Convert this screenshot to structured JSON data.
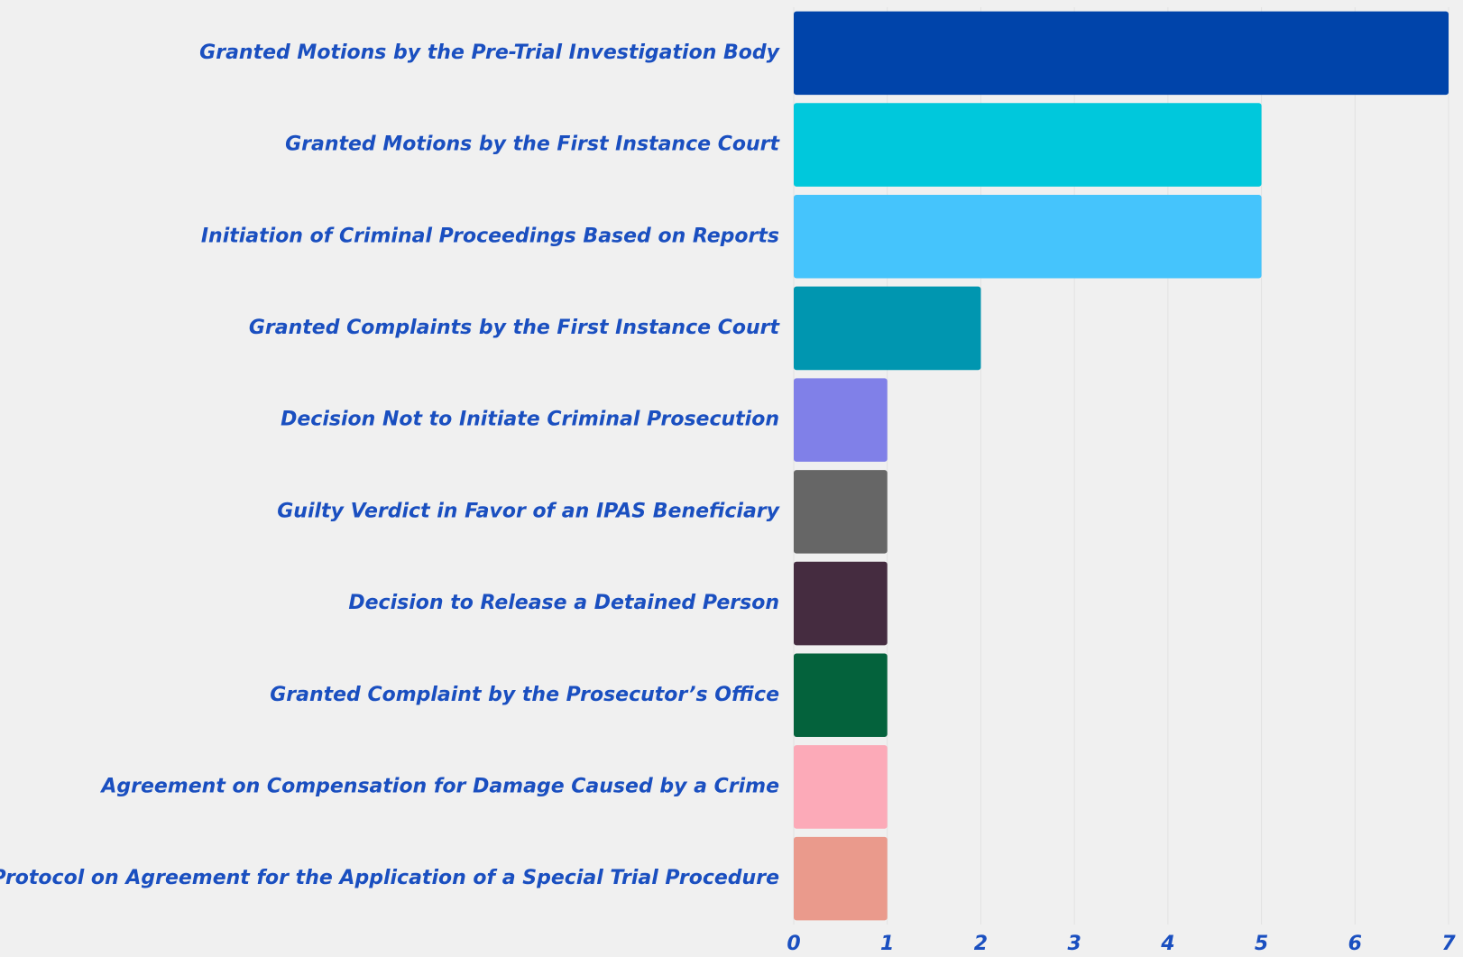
{
  "chart_data": {
    "type": "bar",
    "orientation": "horizontal",
    "categories": [
      "Granted Motions by the Pre-Trial Investigation Body",
      "Granted Motions by the First Instance Court",
      "Initiation of Criminal Proceedings Based on Reports",
      "Granted Complaints by the First Instance Court",
      "Decision Not to Initiate Criminal Prosecution",
      "Guilty Verdict in Favor of an IPAS Beneficiary",
      "Decision to Release a Detained Person",
      "Granted Complaint by the Prosecutor’s Office",
      "Agreement on Compensation for Damage Caused by a Crime",
      "Protocol on Agreement for the Application of a Special Trial Procedure"
    ],
    "values": [
      7,
      5,
      5,
      2,
      1,
      1,
      1,
      1,
      1,
      1
    ],
    "colors": [
      "#0044aa",
      "#00c8dc",
      "#45c4fc",
      "#0096b0",
      "#8080e8",
      "#666666",
      "#452c40",
      "#04623c",
      "#fcaab8",
      "#ea9a8c"
    ],
    "xlim": [
      0,
      7
    ],
    "xticks": [
      0,
      1,
      2,
      3,
      4,
      5,
      6,
      7
    ],
    "grid": true
  }
}
